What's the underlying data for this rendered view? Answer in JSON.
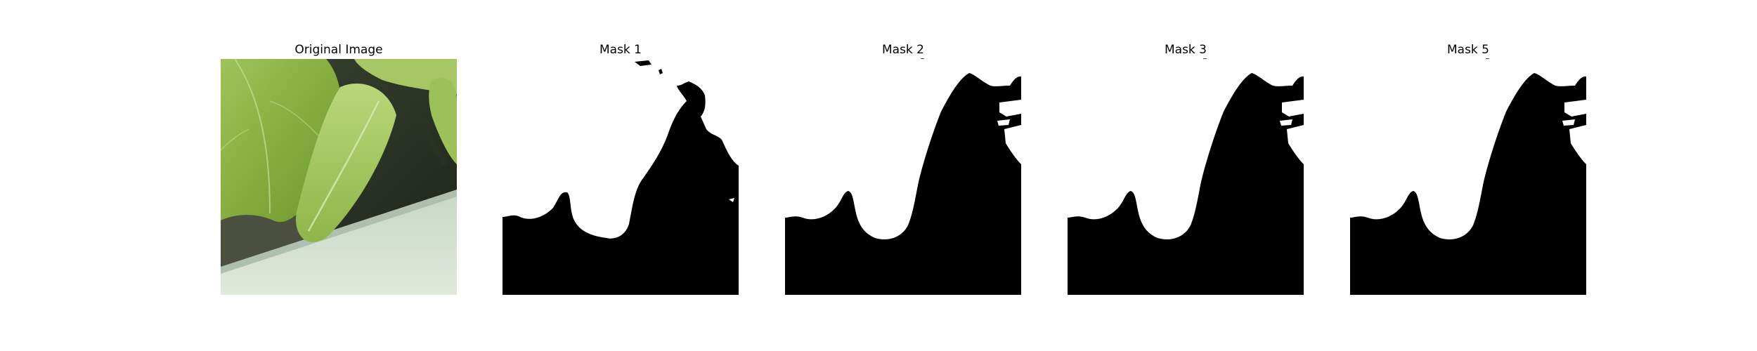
{
  "figure": {
    "panels": [
      {
        "title": "Original Image",
        "kind": "photo"
      },
      {
        "title": "Mask 1",
        "kind": "mask"
      },
      {
        "title": "Mask 2",
        "kind": "mask"
      },
      {
        "title": "Mask 3",
        "kind": "mask"
      },
      {
        "title": "Mask 5",
        "kind": "mask"
      }
    ]
  }
}
